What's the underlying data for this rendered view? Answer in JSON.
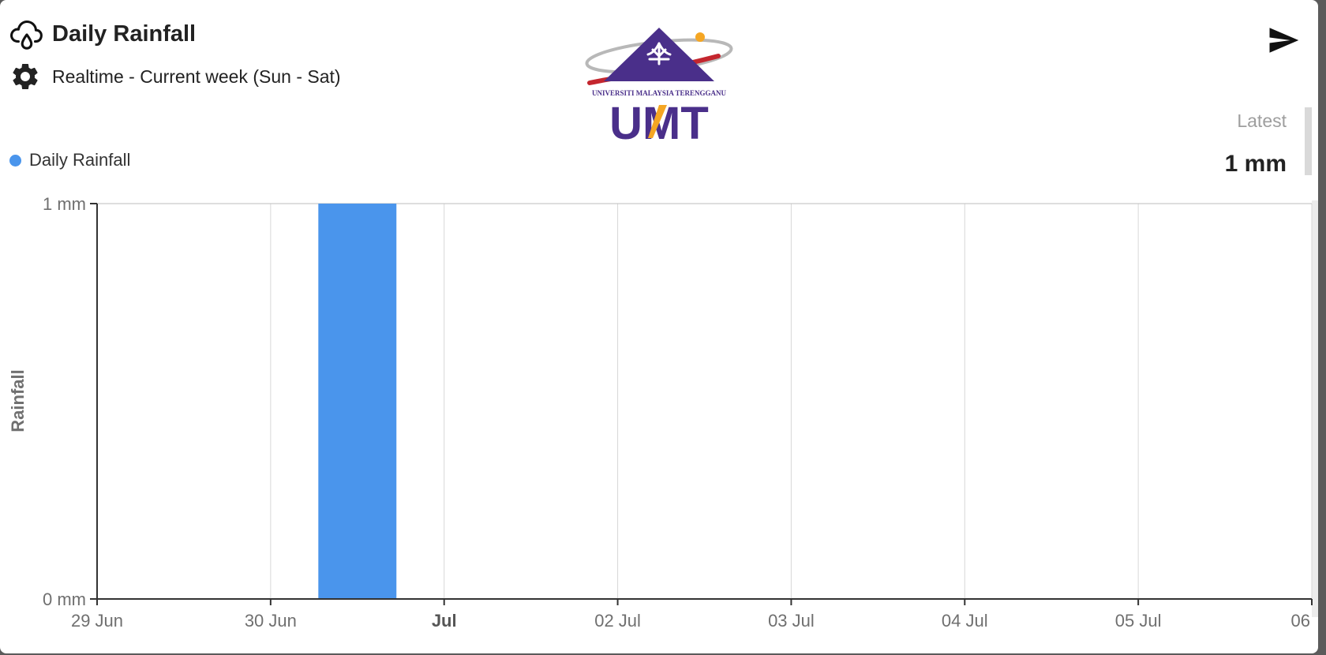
{
  "header": {
    "title": "Daily Rainfall",
    "title_icon": "cloud-rain-icon",
    "subtitle": "Realtime - Current week (Sun - Sat)",
    "subtitle_icon": "gear-icon",
    "share_icon": "send-icon"
  },
  "logo": {
    "text_line": "UNIVERSITI MALAYSIA TERENGGANU",
    "wordmark": "UMT"
  },
  "latest": {
    "label": "Latest",
    "value": "1 mm"
  },
  "legend": {
    "label": "Daily Rainfall",
    "color": "#4a95ec"
  },
  "chart_data": {
    "type": "bar",
    "x": [
      "29 Jun",
      "30 Jun",
      "Jul",
      "02 Jul",
      "03 Jul",
      "04 Jul",
      "05 Jul",
      "06"
    ],
    "series": [
      {
        "name": "Daily Rainfall",
        "color": "#4a95ec",
        "points": [
          {
            "date": "2025-06-30",
            "value": 1
          }
        ]
      }
    ],
    "ylabel": "Rainfall",
    "yticks": [
      "0 mm",
      "1 mm"
    ],
    "ylim": [
      0,
      1
    ],
    "grid": true,
    "legend": "top-left"
  }
}
